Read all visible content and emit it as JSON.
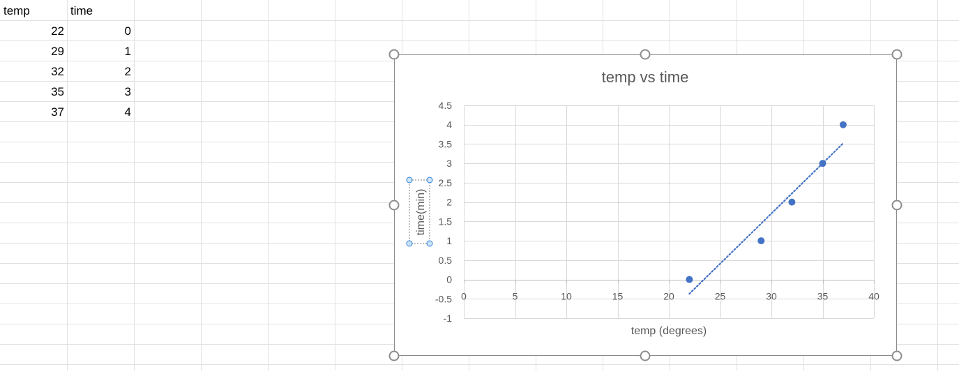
{
  "spreadsheet": {
    "headers": [
      "temp",
      "time"
    ],
    "rows": [
      [
        "22",
        "0"
      ],
      [
        "29",
        "1"
      ],
      [
        "32",
        "2"
      ],
      [
        "35",
        "3"
      ],
      [
        "37",
        "4"
      ]
    ]
  },
  "chart_data": {
    "type": "scatter",
    "title": "temp vs time",
    "xlabel": "temp (degrees)",
    "ylabel": "time(min)",
    "xlim": [
      0,
      40
    ],
    "ylim": [
      -1,
      4.5
    ],
    "xticks": [
      "0",
      "5",
      "10",
      "15",
      "20",
      "25",
      "30",
      "35",
      "40"
    ],
    "yticks": [
      "4.5",
      "4",
      "3.5",
      "3",
      "2.5",
      "2",
      "1.5",
      "1",
      "0.5",
      "0",
      "-0.5",
      "-1"
    ],
    "x": [
      22,
      29,
      32,
      35,
      37
    ],
    "y": [
      0,
      1,
      2,
      3,
      4
    ],
    "trendline": {
      "type": "linear",
      "style": "dotted",
      "from": [
        22,
        -0.37
      ],
      "to": [
        37,
        3.52
      ]
    },
    "grid": true,
    "legend": "none",
    "marker_color": "#4472c4",
    "trendline_color": "#4472c4"
  }
}
